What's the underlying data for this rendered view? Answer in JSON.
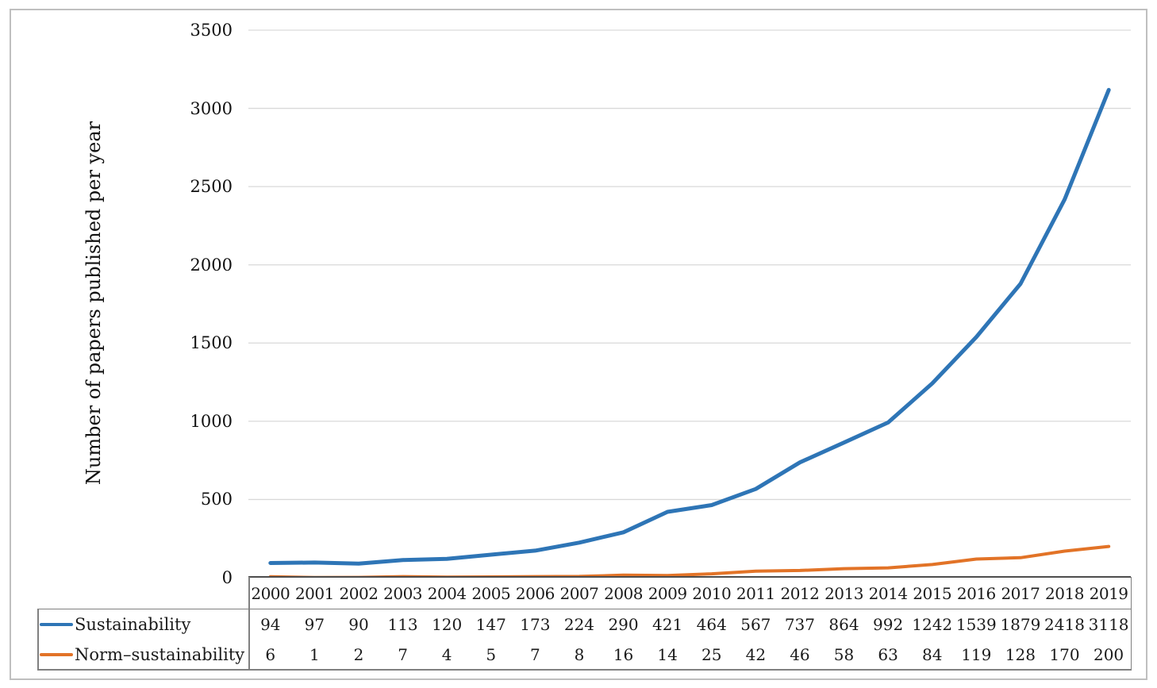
{
  "figure": {
    "y_axis_title": "Number of papers published per year"
  },
  "chart_data": {
    "type": "line",
    "title": "",
    "xlabel": "",
    "ylabel": "Number of papers published per year",
    "x": [
      2000,
      2001,
      2002,
      2003,
      2004,
      2005,
      2006,
      2007,
      2008,
      2009,
      2010,
      2011,
      2012,
      2013,
      2014,
      2015,
      2016,
      2017,
      2018,
      2019
    ],
    "series": [
      {
        "name": "Sustainability",
        "color": "#2E75B6",
        "values": [
          94,
          97,
          90,
          113,
          120,
          147,
          173,
          224,
          290,
          421,
          464,
          567,
          737,
          864,
          992,
          1242,
          1539,
          1879,
          2418,
          3118
        ]
      },
      {
        "name": "Norm–sustainability",
        "color": "#E27327",
        "values": [
          6,
          1,
          2,
          7,
          4,
          5,
          7,
          8,
          16,
          14,
          25,
          42,
          46,
          58,
          63,
          84,
          119,
          128,
          170,
          200
        ]
      }
    ],
    "ylim": [
      0,
      3500
    ],
    "yticks": [
      0,
      500,
      1000,
      1500,
      2000,
      2500,
      3000,
      3500
    ],
    "grid": true,
    "gridline_color": "#D9D9D9",
    "legend_position": "data-table-left",
    "data_table": true
  }
}
